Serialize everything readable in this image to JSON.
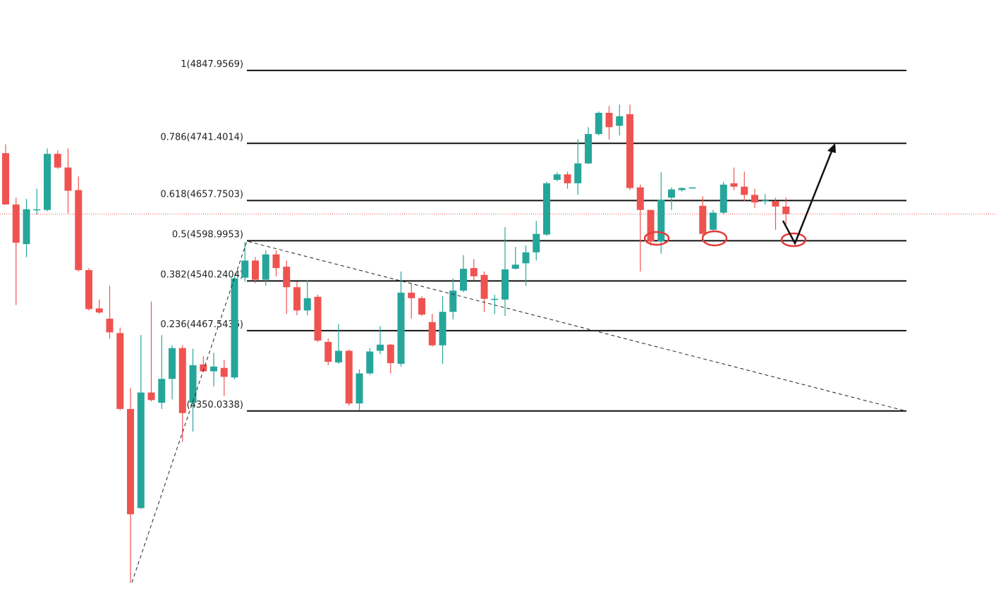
{
  "chart_data": {
    "type": "candlestick",
    "ylim": [
      4059,
      4951
    ],
    "up_color": "#26a69a",
    "down_color": "#ef5350",
    "open": [
      4727,
      4652,
      4594,
      4644,
      4644,
      4726,
      4706,
      4673,
      4556,
      4500,
      4485,
      4464,
      4353,
      4208,
      4377,
      4362,
      4397,
      4442,
      4362,
      4418,
      4408,
      4413,
      4399,
      4545,
      4570,
      4542,
      4579,
      4561,
      4531,
      4497,
      4517,
      4451,
      4421,
      4438,
      4361,
      4405,
      4438,
      4447,
      4419,
      4523,
      4515,
      4480,
      4446,
      4495,
      4526,
      4559,
      4549,
      4513,
      4513,
      4558,
      4566,
      4582,
      4608,
      4688,
      4696,
      4683,
      4712,
      4755,
      4786,
      4767,
      4784,
      4677,
      4644,
      4598,
      4662,
      4673,
      4676,
      4650,
      4615,
      4640,
      4683,
      4678,
      4666,
      4657,
      4657,
      4649
    ],
    "high": [
      4740,
      4662,
      4660,
      4675,
      4734,
      4731,
      4734,
      4693,
      4559,
      4513,
      4533,
      4472,
      4384,
      4461,
      4510,
      4461,
      4446,
      4446,
      4441,
      4430,
      4435,
      4425,
      4549,
      4597,
      4575,
      4585,
      4585,
      4570,
      4539,
      4541,
      4520,
      4456,
      4477,
      4440,
      4411,
      4442,
      4474,
      4448,
      4554,
      4536,
      4518,
      4492,
      4518,
      4544,
      4578,
      4572,
      4554,
      4520,
      4619,
      4590,
      4592,
      4628,
      4685,
      4699,
      4700,
      4747,
      4765,
      4788,
      4796,
      4798,
      4798,
      4681,
      4644,
      4699,
      4677,
      4677,
      4677,
      4664,
      4644,
      4685,
      4706,
      4700,
      4675,
      4667,
      4662,
      4662
    ],
    "low": [
      4652,
      4505,
      4575,
      4637,
      4642,
      4704,
      4639,
      4554,
      4497,
      4492,
      4456,
      4351,
      4099,
      4207,
      4364,
      4353,
      4367,
      4305,
      4320,
      4407,
      4386,
      4372,
      4396,
      4539,
      4537,
      4533,
      4547,
      4492,
      4490,
      4490,
      4451,
      4417,
      4419,
      4358,
      4351,
      4403,
      4433,
      4405,
      4415,
      4485,
      4489,
      4444,
      4419,
      4484,
      4524,
      4541,
      4495,
      4492,
      4489,
      4557,
      4533,
      4570,
      4606,
      4686,
      4675,
      4666,
      4711,
      4753,
      4747,
      4753,
      4673,
      4554,
      4592,
      4580,
      4644,
      4671,
      4675,
      4603,
      4611,
      4638,
      4673,
      4657,
      4647,
      4652,
      4615,
      4623
    ],
    "close": [
      4652,
      4596,
      4645,
      4645,
      4726,
      4706,
      4672,
      4556,
      4499,
      4494,
      4465,
      4353,
      4199,
      4377,
      4366,
      4397,
      4442,
      4347,
      4417,
      4408,
      4415,
      4400,
      4544,
      4570,
      4542,
      4579,
      4559,
      4531,
      4497,
      4515,
      4453,
      4422,
      4438,
      4361,
      4405,
      4437,
      4447,
      4420,
      4523,
      4515,
      4491,
      4446,
      4495,
      4526,
      4558,
      4547,
      4514,
      4514,
      4557,
      4564,
      4582,
      4609,
      4683,
      4696,
      4683,
      4712,
      4755,
      4786,
      4765,
      4781,
      4676,
      4644,
      4598,
      4659,
      4674,
      4676,
      4677,
      4609,
      4640,
      4681,
      4678,
      4666,
      4655,
      4658,
      4649,
      4638
    ],
    "last_price": 4638,
    "last_price_color": "#ef5350",
    "fib_levels": [
      {
        "ratio": 1,
        "price": 4847.9569,
        "label": "1(4847.9569)"
      },
      {
        "ratio": 0.786,
        "price": 4741.4014,
        "label": "0.786(4741.4014)"
      },
      {
        "ratio": 0.618,
        "price": 4657.7503,
        "label": "0.618(4657.7503)"
      },
      {
        "ratio": 0.5,
        "price": 4598.9953,
        "label": "0.5(4598.9953)"
      },
      {
        "ratio": 0.382,
        "price": 4540.2404,
        "label": "0.382(4540.2404)"
      },
      {
        "ratio": 0.236,
        "price": 4467.5436,
        "label": "0.236(4467.5436)"
      },
      {
        "ratio": 0,
        "price": 4350.0338,
        "label": "0(4350.0338)"
      }
    ]
  }
}
